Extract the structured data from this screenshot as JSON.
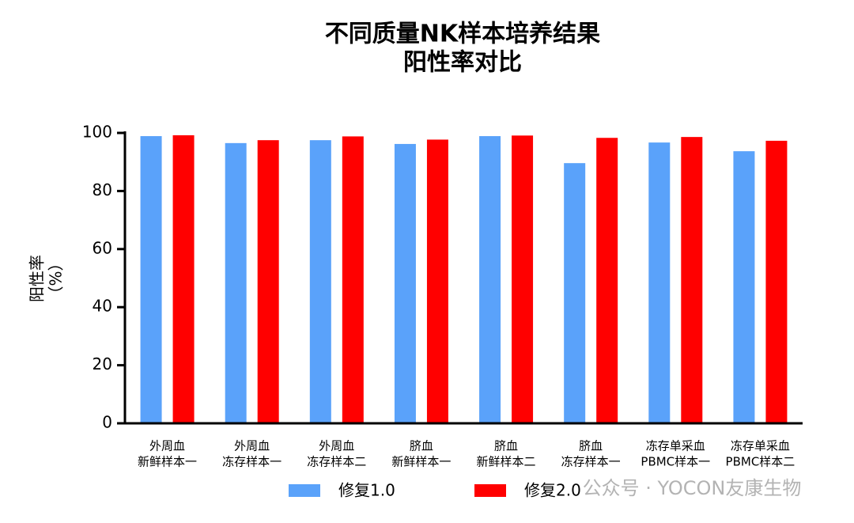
{
  "chart_data": {
    "type": "bar",
    "title": [
      "不同质量NK样本培养结果",
      "阳性率对比"
    ],
    "ylabel": [
      "阳性率",
      "（%）"
    ],
    "categories": [
      [
        "外周血",
        "新鲜样本一"
      ],
      [
        "外周血",
        "冻存样本一"
      ],
      [
        "外周血",
        "冻存样本二"
      ],
      [
        "脐血",
        "新鲜样本一"
      ],
      [
        "脐血",
        "新鲜样本二"
      ],
      [
        "脐血",
        "冻存样本一"
      ],
      [
        "冻存单采血",
        "PBMC样本一"
      ],
      [
        "冻存单采血",
        "PBMC样本二"
      ]
    ],
    "series": [
      {
        "name": "修复1.0",
        "color": "#5aa2fa",
        "values": [
          98.9,
          96.5,
          97.5,
          96.2,
          98.9,
          89.6,
          96.7,
          93.7
        ]
      },
      {
        "name": "修复2.0",
        "color": "#ff0000",
        "values": [
          99.2,
          97.5,
          98.8,
          97.7,
          99.1,
          98.3,
          98.6,
          97.3
        ]
      }
    ],
    "ylim": [
      0,
      100
    ],
    "yticks": [
      0,
      20,
      40,
      60,
      80,
      100
    ],
    "watermark": "公众号 · YOCON友康生物"
  }
}
